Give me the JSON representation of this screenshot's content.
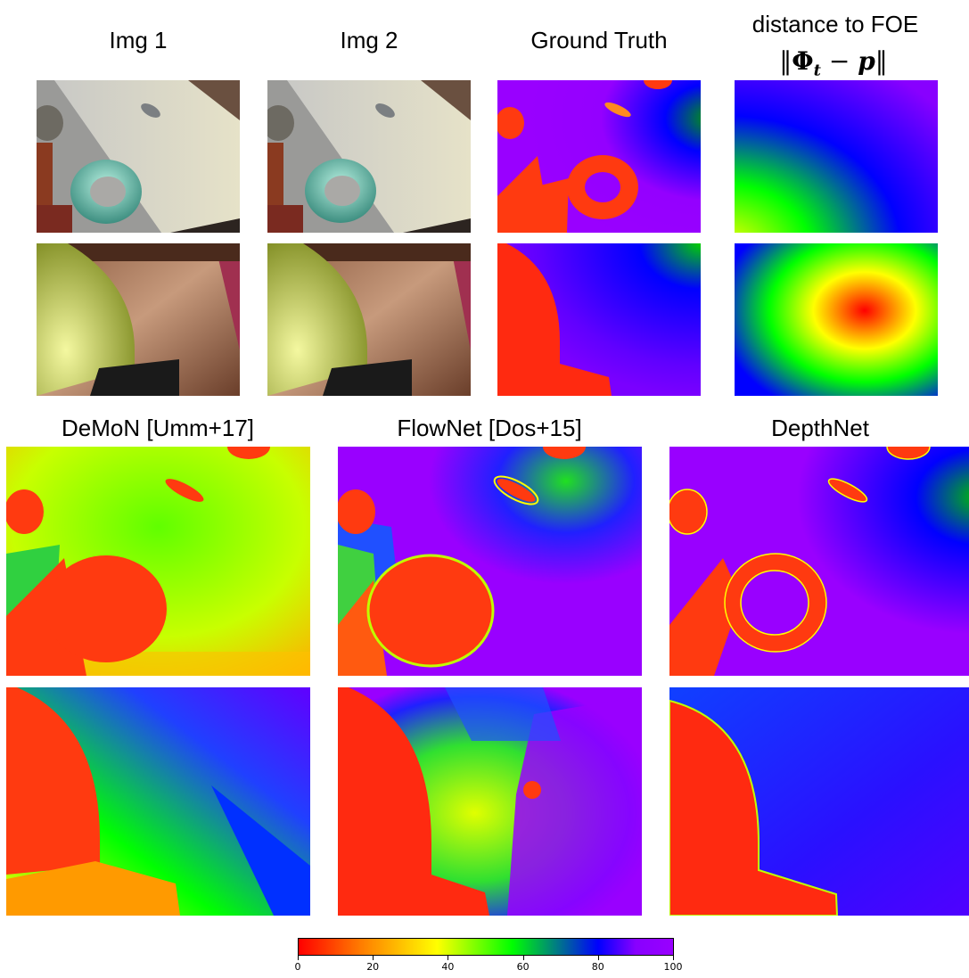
{
  "titles": {
    "img1": "Img 1",
    "img2": "Img 2",
    "ground_truth": "Ground Truth",
    "distance": "distance to FOE",
    "demon": "DeMoN [Umm+17]",
    "flownet": "FlowNet [Dos+15]",
    "depthnet": "DepthNet"
  },
  "formula": {
    "open": "‖",
    "phi": "Φ",
    "sub": "t",
    "minus": " − ",
    "p": "p",
    "close": "‖"
  },
  "colorbar": {
    "min": 0,
    "max": 100,
    "ticks": [
      "0",
      "20",
      "40",
      "60",
      "80",
      "100"
    ],
    "colors": [
      "#ff0000",
      "#ffff00",
      "#00ff00",
      "#0000ff",
      "#9900ff"
    ]
  }
}
